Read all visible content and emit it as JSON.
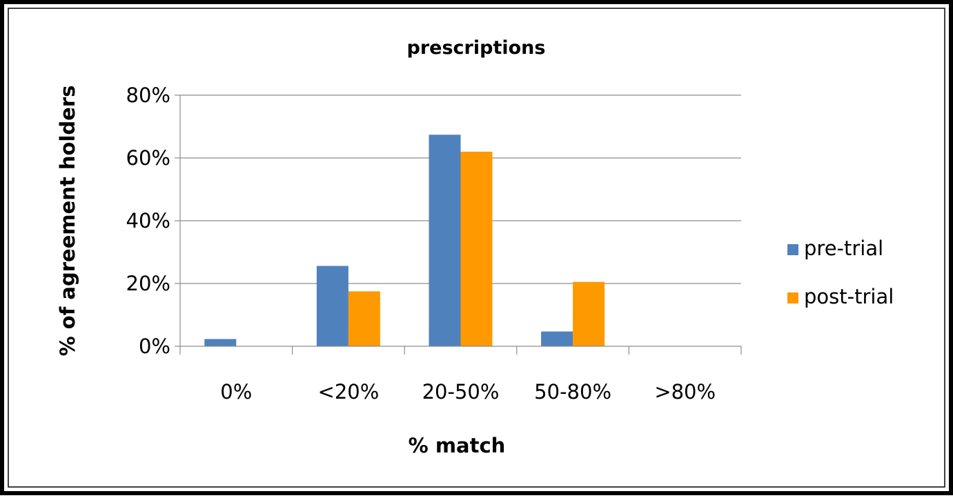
{
  "chart_data": {
    "type": "bar",
    "title": "prescriptions",
    "xlabel": "% match",
    "ylabel": "% of agreement holders",
    "categories": [
      "0%",
      "<20%",
      "20-50%",
      "50-80%",
      ">80%"
    ],
    "series": [
      {
        "name": "pre-trial",
        "color": "#4F81BD",
        "values": [
          2.3,
          25.6,
          67.4,
          4.7,
          0
        ]
      },
      {
        "name": "post-trial",
        "color": "#FF9900",
        "values": [
          0,
          17.5,
          62.0,
          20.5,
          0
        ]
      }
    ],
    "ylim": [
      0,
      80
    ],
    "yticks": [
      0,
      20,
      40,
      60,
      80
    ],
    "ytick_labels": [
      "0%",
      "20%",
      "40%",
      "60%",
      "80%"
    ],
    "grid": true,
    "legend_position": "right"
  }
}
